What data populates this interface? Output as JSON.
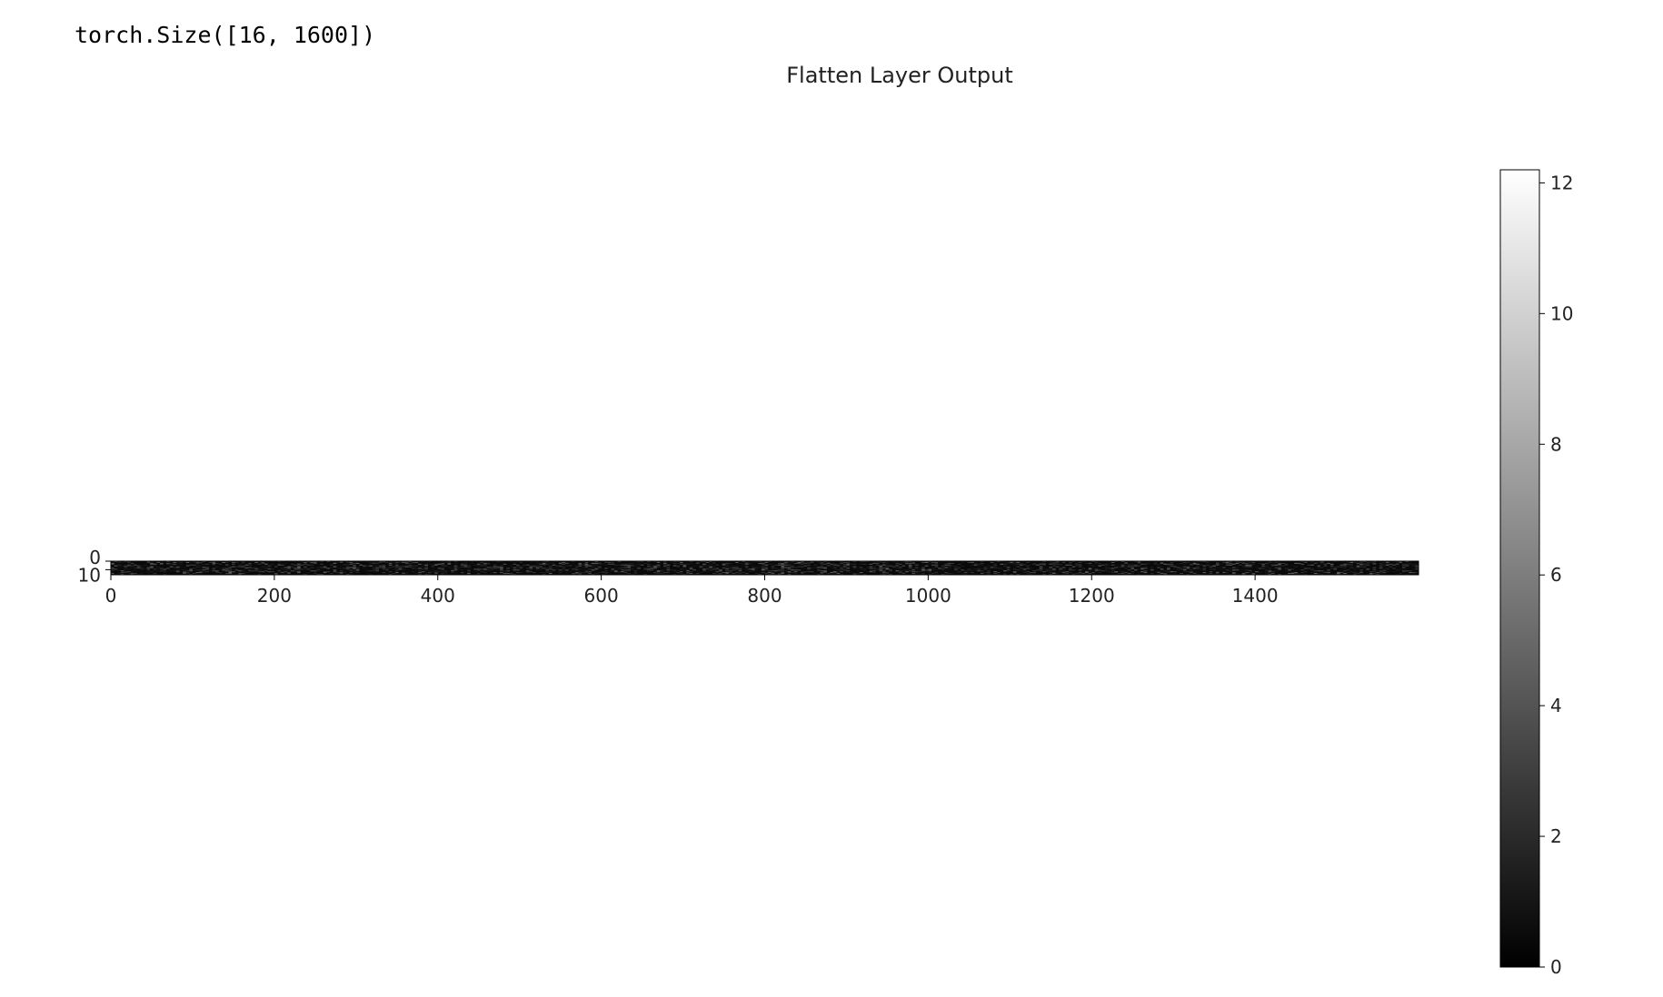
{
  "output": {
    "text": "torch.Size([16, 1600])"
  },
  "chart_data": {
    "type": "heatmap",
    "title": "Flatten Layer Output",
    "xlabel": "",
    "ylabel": "",
    "shape": [
      16,
      1600
    ],
    "xlim": [
      0,
      1600
    ],
    "ylim": [
      16,
      0
    ],
    "x_ticks": [
      0,
      200,
      400,
      600,
      800,
      1000,
      1200,
      1400
    ],
    "y_ticks": [
      0,
      10
    ],
    "colormap": "gray",
    "colorbar": {
      "min": 0,
      "max": 12.2,
      "ticks": [
        0,
        2,
        4,
        6,
        8,
        10,
        12
      ]
    },
    "values_note_visible": "",
    "grid": false,
    "colors": {
      "low": "#000000",
      "high": "#ffffff"
    }
  }
}
